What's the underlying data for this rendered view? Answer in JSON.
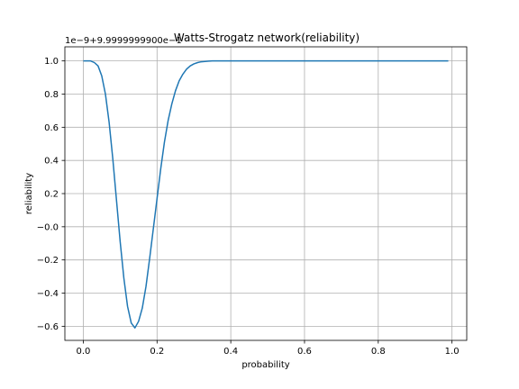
{
  "chart_data": {
    "type": "line",
    "title": "Watts-Strogatz network(reliability)",
    "xlabel": "probability",
    "ylabel": "reliability",
    "offset_text": "1e−9+9.9999999900e−1",
    "xlim": [
      -0.05,
      1.04
    ],
    "ylim": [
      -0.685,
      1.085
    ],
    "xticks": [
      0.0,
      0.2,
      0.4,
      0.6,
      0.8,
      1.0
    ],
    "xtick_labels": [
      "0.0",
      "0.2",
      "0.4",
      "0.6",
      "0.8",
      "1.0"
    ],
    "yticks": [
      -0.6,
      -0.4,
      -0.2,
      0.0,
      0.2,
      0.4,
      0.6,
      0.8,
      1.0
    ],
    "ytick_labels": [
      "−0.6",
      "−0.4",
      "−0.2",
      "−0.0",
      "0.2",
      "0.4",
      "0.6",
      "0.8",
      "1.0"
    ],
    "grid": true,
    "color": "#1f77b4",
    "series": [
      {
        "x": [
          0.0,
          0.01,
          0.02,
          0.03,
          0.04,
          0.05,
          0.06,
          0.07,
          0.08,
          0.09,
          0.1,
          0.11,
          0.12,
          0.13,
          0.14,
          0.15,
          0.16,
          0.17,
          0.18,
          0.19,
          0.2,
          0.21,
          0.22,
          0.23,
          0.24,
          0.25,
          0.26,
          0.27,
          0.28,
          0.29,
          0.3,
          0.31,
          0.32,
          0.33,
          0.34,
          0.35,
          0.36,
          0.37,
          0.38,
          0.39,
          0.4,
          0.45,
          0.5,
          0.6,
          0.7,
          0.8,
          0.9,
          0.99
        ],
        "y": [
          1.0,
          1.0,
          1.0,
          0.99,
          0.97,
          0.91,
          0.8,
          0.63,
          0.41,
          0.16,
          -0.09,
          -0.31,
          -0.48,
          -0.58,
          -0.61,
          -0.57,
          -0.49,
          -0.36,
          -0.19,
          -0.01,
          0.17,
          0.35,
          0.51,
          0.64,
          0.74,
          0.82,
          0.88,
          0.92,
          0.95,
          0.97,
          0.982,
          0.99,
          0.995,
          0.997,
          0.999,
          1.0,
          1.0,
          1.0,
          1.0,
          1.0,
          1.0,
          1.0,
          1.0,
          1.0,
          1.0,
          1.0,
          1.0,
          1.0
        ]
      }
    ]
  }
}
